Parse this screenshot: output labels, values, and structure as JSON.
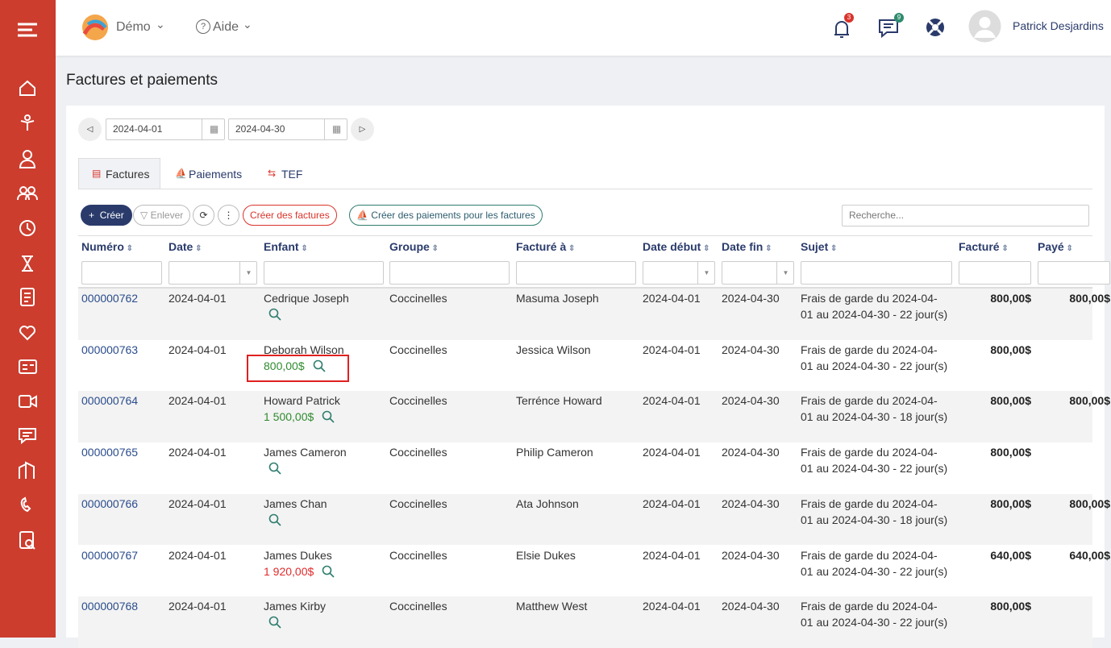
{
  "header": {
    "brand": "Démo",
    "help": "Aide",
    "notifications": "3",
    "messages": "9",
    "user": "Patrick Desjardins"
  },
  "page_title": "Factures et paiements",
  "date_range": {
    "start": "2024-04-01",
    "end": "2024-04-30"
  },
  "tabs": [
    "Factures",
    "Paiements",
    "TEF"
  ],
  "toolbar": {
    "create": "Créer",
    "remove": "Enlever",
    "create_invoices": "Créer des factures",
    "create_payments": "Créer des paiements pour les factures",
    "search_placeholder": "Recherche..."
  },
  "table": {
    "columns": [
      "Numéro",
      "Date",
      "Enfant",
      "Groupe",
      "Facturé à",
      "Date début",
      "Date fin",
      "Sujet",
      "Facturé",
      "Payé"
    ],
    "rows": [
      {
        "number": "000000762",
        "date": "2024-04-01",
        "child": "Cedrique Joseph",
        "group": "Coccinelles",
        "billed_to": "Masuma Joseph",
        "start": "2024-04-01",
        "end": "2024-04-30",
        "subject": "Frais de garde du 2024-04-01 au 2024-04-30 - 22 jour(s)",
        "billed": "800,00$",
        "paid": "800,00$"
      },
      {
        "number": "000000763",
        "date": "2024-04-01",
        "child": "Deborah Wilson",
        "balance": "800,00$",
        "balance_color": "#2e8b2e",
        "group": "Coccinelles",
        "billed_to": "Jessica Wilson",
        "start": "2024-04-01",
        "end": "2024-04-30",
        "subject": "Frais de garde du 2024-04-01 au 2024-04-30 - 22 jour(s)",
        "billed": "800,00$"
      },
      {
        "number": "000000764",
        "date": "2024-04-01",
        "child": "Howard Patrick",
        "balance": "1 500,00$",
        "balance_color": "#2e8b2e",
        "group": "Coccinelles",
        "billed_to": "Terrénce Howard",
        "start": "2024-04-01",
        "end": "2024-04-30",
        "subject": "Frais de garde du 2024-04-01 au 2024-04-30 - 18 jour(s)",
        "billed": "800,00$",
        "paid": "800,00$"
      },
      {
        "number": "000000765",
        "date": "2024-04-01",
        "child": "James Cameron",
        "group": "Coccinelles",
        "billed_to": "Philip Cameron",
        "start": "2024-04-01",
        "end": "2024-04-30",
        "subject": "Frais de garde du 2024-04-01 au 2024-04-30 - 22 jour(s)",
        "billed": "800,00$"
      },
      {
        "number": "000000766",
        "date": "2024-04-01",
        "child": "James Chan",
        "group": "Coccinelles",
        "billed_to": "Ata Johnson",
        "start": "2024-04-01",
        "end": "2024-04-30",
        "subject": "Frais de garde du 2024-04-01 au 2024-04-30 - 18 jour(s)",
        "billed": "800,00$",
        "paid": "800,00$"
      },
      {
        "number": "000000767",
        "date": "2024-04-01",
        "child": "James Dukes",
        "balance": "1 920,00$",
        "balance_color": "#e02b2b",
        "group": "Coccinelles",
        "billed_to": "Elsie Dukes",
        "start": "2024-04-01",
        "end": "2024-04-30",
        "subject": "Frais de garde du 2024-04-01 au 2024-04-30 - 22 jour(s)",
        "billed": "640,00$",
        "paid": "640,00$"
      },
      {
        "number": "000000768",
        "date": "2024-04-01",
        "child": "James Kirby",
        "group": "Coccinelles",
        "billed_to": "Matthew West",
        "start": "2024-04-01",
        "end": "2024-04-30",
        "subject": "Frais de garde du 2024-04-01 au 2024-04-30 - 22 jour(s)",
        "billed": "800,00$"
      }
    ]
  }
}
